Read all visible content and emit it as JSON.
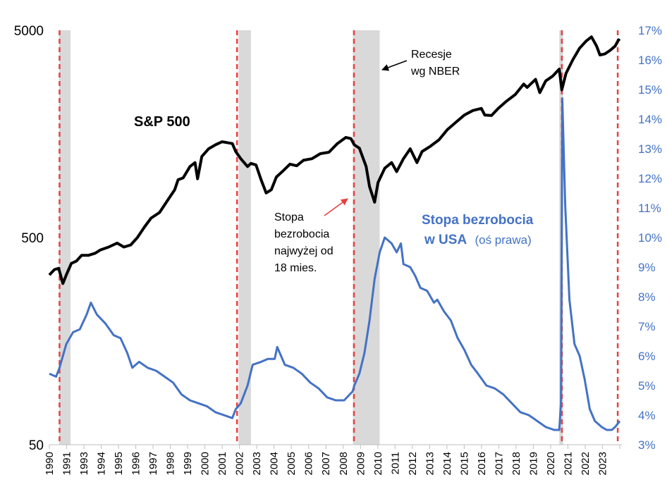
{
  "chart_data": {
    "type": "line",
    "title": "",
    "colors": {
      "sp500": "#000000",
      "unemployment": "#4472C4",
      "recession": "#D9D9D9",
      "marker": "#E84040"
    },
    "left_axis": {
      "scale": "log",
      "range": [
        50,
        5000
      ],
      "ticks": [
        "5000",
        "500",
        "50"
      ]
    },
    "right_axis": {
      "scale": "linear",
      "range": [
        3,
        17
      ],
      "ticks": [
        "17%",
        "16%",
        "15%",
        "14%",
        "13%",
        "12%",
        "11%",
        "10%",
        "9%",
        "8%",
        "7%",
        "6%",
        "5%",
        "4%",
        "3%"
      ]
    },
    "x_axis": {
      "range": [
        1990,
        2023.67
      ],
      "ticks": [
        "1990",
        "1991",
        "1993",
        "1994",
        "1995",
        "1996",
        "1997",
        "1998",
        "1999",
        "2000",
        "2001",
        "2002",
        "2003",
        "2004",
        "2005",
        "2006",
        "2007",
        "2008",
        "2009",
        "2010",
        "2011",
        "2012",
        "2013",
        "2014",
        "2015",
        "2016",
        "2017",
        "2018",
        "2019",
        "2020",
        "2021",
        "2022",
        "2023"
      ]
    },
    "recessions": [
      [
        1990.58,
        1991.25
      ],
      [
        2001.17,
        2001.9
      ],
      [
        2007.92,
        2009.5
      ],
      [
        2020.1,
        2020.33
      ]
    ],
    "signal_lines": [
      1990.6,
      2001.08,
      2007.98,
      2020.25,
      2023.55
    ],
    "series": [
      {
        "name": "S&P 500",
        "axis": "left",
        "points": [
          [
            1990.0,
            330
          ],
          [
            1990.3,
            350
          ],
          [
            1990.55,
            355
          ],
          [
            1990.8,
            300
          ],
          [
            1991.0,
            330
          ],
          [
            1991.3,
            375
          ],
          [
            1991.6,
            385
          ],
          [
            1991.9,
            410
          ],
          [
            1992.3,
            410
          ],
          [
            1992.7,
            420
          ],
          [
            1993.0,
            435
          ],
          [
            1993.5,
            450
          ],
          [
            1994.0,
            470
          ],
          [
            1994.4,
            450
          ],
          [
            1994.8,
            460
          ],
          [
            1995.2,
            500
          ],
          [
            1995.6,
            560
          ],
          [
            1996.0,
            620
          ],
          [
            1996.5,
            660
          ],
          [
            1997.0,
            760
          ],
          [
            1997.4,
            850
          ],
          [
            1997.6,
            950
          ],
          [
            1997.9,
            970
          ],
          [
            1998.3,
            1100
          ],
          [
            1998.6,
            1150
          ],
          [
            1998.75,
            960
          ],
          [
            1999.0,
            1230
          ],
          [
            1999.4,
            1340
          ],
          [
            1999.8,
            1400
          ],
          [
            2000.2,
            1450
          ],
          [
            2000.6,
            1430
          ],
          [
            2000.8,
            1420
          ],
          [
            2001.0,
            1300
          ],
          [
            2001.3,
            1200
          ],
          [
            2001.7,
            1100
          ],
          [
            2001.9,
            1140
          ],
          [
            2002.2,
            1120
          ],
          [
            2002.5,
            950
          ],
          [
            2002.8,
            820
          ],
          [
            2003.1,
            850
          ],
          [
            2003.4,
            980
          ],
          [
            2003.8,
            1050
          ],
          [
            2004.2,
            1130
          ],
          [
            2004.6,
            1110
          ],
          [
            2005.0,
            1180
          ],
          [
            2005.5,
            1200
          ],
          [
            2006.0,
            1270
          ],
          [
            2006.5,
            1290
          ],
          [
            2007.0,
            1420
          ],
          [
            2007.5,
            1520
          ],
          [
            2007.8,
            1500
          ],
          [
            2008.0,
            1400
          ],
          [
            2008.3,
            1350
          ],
          [
            2008.7,
            1100
          ],
          [
            2008.9,
            880
          ],
          [
            2009.2,
            740
          ],
          [
            2009.4,
            920
          ],
          [
            2009.8,
            1080
          ],
          [
            2010.2,
            1150
          ],
          [
            2010.5,
            1040
          ],
          [
            2010.9,
            1200
          ],
          [
            2011.3,
            1340
          ],
          [
            2011.7,
            1150
          ],
          [
            2012.0,
            1300
          ],
          [
            2012.5,
            1380
          ],
          [
            2013.0,
            1480
          ],
          [
            2013.5,
            1660
          ],
          [
            2014.0,
            1800
          ],
          [
            2014.5,
            1950
          ],
          [
            2015.0,
            2050
          ],
          [
            2015.5,
            2100
          ],
          [
            2015.7,
            1950
          ],
          [
            2016.1,
            1940
          ],
          [
            2016.5,
            2100
          ],
          [
            2017.0,
            2280
          ],
          [
            2017.5,
            2450
          ],
          [
            2018.0,
            2750
          ],
          [
            2018.2,
            2650
          ],
          [
            2018.7,
            2900
          ],
          [
            2018.95,
            2500
          ],
          [
            2019.3,
            2850
          ],
          [
            2019.7,
            3000
          ],
          [
            2020.1,
            3250
          ],
          [
            2020.25,
            2580
          ],
          [
            2020.5,
            3100
          ],
          [
            2020.9,
            3600
          ],
          [
            2021.3,
            4100
          ],
          [
            2021.7,
            4450
          ],
          [
            2022.0,
            4650
          ],
          [
            2022.3,
            4200
          ],
          [
            2022.5,
            3800
          ],
          [
            2022.8,
            3850
          ],
          [
            2023.1,
            4000
          ],
          [
            2023.4,
            4200
          ],
          [
            2023.6,
            4500
          ],
          [
            2023.67,
            4450
          ]
        ]
      },
      {
        "name": "Stopa bezrobocia w USA (oś prawa)",
        "axis": "right",
        "points": [
          [
            1990.0,
            5.4
          ],
          [
            1990.4,
            5.3
          ],
          [
            1990.6,
            5.6
          ],
          [
            1991.0,
            6.4
          ],
          [
            1991.4,
            6.8
          ],
          [
            1991.8,
            6.9
          ],
          [
            1992.2,
            7.4
          ],
          [
            1992.45,
            7.8
          ],
          [
            1992.8,
            7.4
          ],
          [
            1993.3,
            7.1
          ],
          [
            1993.8,
            6.7
          ],
          [
            1994.2,
            6.6
          ],
          [
            1994.6,
            6.1
          ],
          [
            1994.9,
            5.6
          ],
          [
            1995.3,
            5.8
          ],
          [
            1995.8,
            5.6
          ],
          [
            1996.3,
            5.5
          ],
          [
            1996.8,
            5.3
          ],
          [
            1997.3,
            5.1
          ],
          [
            1997.8,
            4.7
          ],
          [
            1998.3,
            4.5
          ],
          [
            1998.8,
            4.4
          ],
          [
            1999.3,
            4.3
          ],
          [
            1999.8,
            4.1
          ],
          [
            2000.3,
            4.0
          ],
          [
            2000.8,
            3.9
          ],
          [
            2001.0,
            4.2
          ],
          [
            2001.3,
            4.4
          ],
          [
            2001.7,
            5.0
          ],
          [
            2002.0,
            5.7
          ],
          [
            2002.5,
            5.8
          ],
          [
            2002.9,
            5.9
          ],
          [
            2003.3,
            5.9
          ],
          [
            2003.45,
            6.3
          ],
          [
            2003.9,
            5.7
          ],
          [
            2004.4,
            5.6
          ],
          [
            2004.9,
            5.4
          ],
          [
            2005.4,
            5.1
          ],
          [
            2005.9,
            4.9
          ],
          [
            2006.4,
            4.6
          ],
          [
            2006.9,
            4.5
          ],
          [
            2007.4,
            4.5
          ],
          [
            2007.9,
            4.8
          ],
          [
            2008.0,
            5.0
          ],
          [
            2008.3,
            5.4
          ],
          [
            2008.6,
            6.1
          ],
          [
            2008.9,
            7.2
          ],
          [
            2009.2,
            8.6
          ],
          [
            2009.5,
            9.5
          ],
          [
            2009.8,
            10.0
          ],
          [
            2010.2,
            9.8
          ],
          [
            2010.5,
            9.5
          ],
          [
            2010.75,
            9.8
          ],
          [
            2010.9,
            9.1
          ],
          [
            2011.3,
            9.0
          ],
          [
            2011.6,
            8.7
          ],
          [
            2011.9,
            8.3
          ],
          [
            2012.3,
            8.2
          ],
          [
            2012.7,
            7.8
          ],
          [
            2012.9,
            7.9
          ],
          [
            2013.3,
            7.5
          ],
          [
            2013.7,
            7.2
          ],
          [
            2014.1,
            6.6
          ],
          [
            2014.5,
            6.2
          ],
          [
            2014.9,
            5.7
          ],
          [
            2015.3,
            5.4
          ],
          [
            2015.8,
            5.0
          ],
          [
            2016.3,
            4.9
          ],
          [
            2016.8,
            4.7
          ],
          [
            2017.3,
            4.4
          ],
          [
            2017.8,
            4.1
          ],
          [
            2018.3,
            4.0
          ],
          [
            2018.8,
            3.8
          ],
          [
            2019.3,
            3.6
          ],
          [
            2019.8,
            3.5
          ],
          [
            2020.1,
            3.5
          ],
          [
            2020.2,
            4.4
          ],
          [
            2020.28,
            14.7
          ],
          [
            2020.45,
            11.1
          ],
          [
            2020.7,
            7.9
          ],
          [
            2021.0,
            6.4
          ],
          [
            2021.3,
            6.0
          ],
          [
            2021.6,
            5.2
          ],
          [
            2021.9,
            4.2
          ],
          [
            2022.2,
            3.8
          ],
          [
            2022.6,
            3.6
          ],
          [
            2022.9,
            3.5
          ],
          [
            2023.2,
            3.5
          ],
          [
            2023.4,
            3.6
          ],
          [
            2023.67,
            3.8
          ]
        ]
      }
    ],
    "annotations": {
      "sp500_label": "S&P 500",
      "unemployment_label_bold_1": "Stopa bezrobocia",
      "unemployment_label_bold_2": "w USA",
      "unemployment_label_normal": "(oś prawa)",
      "recession_label_1": "Recesje",
      "recession_label_2": "wg NBER",
      "signal_label_1": "Stopa",
      "signal_label_2": "bezrobocia",
      "signal_label_3": "najwyżej od",
      "signal_label_4": "18 mies."
    }
  }
}
